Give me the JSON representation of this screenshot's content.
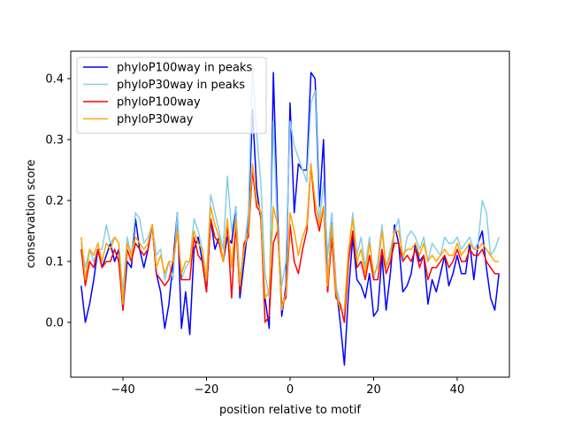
{
  "chart_data": {
    "type": "line",
    "title": "",
    "xlabel": "position relative to motif",
    "ylabel": "conservation score",
    "xlim": [
      -52.5,
      52.5
    ],
    "ylim": [
      -0.09,
      0.445
    ],
    "xticks": [
      -40,
      -20,
      0,
      20,
      40
    ],
    "xtick_labels": [
      "−40",
      "−20",
      "0",
      "20",
      "40"
    ],
    "yticks": [
      0.0,
      0.1,
      0.2,
      0.3,
      0.4
    ],
    "ytick_labels": [
      "0.0",
      "0.1",
      "0.2",
      "0.3",
      "0.4"
    ],
    "grid": false,
    "legend_position": "top-left",
    "x": [
      -50,
      -49,
      -48,
      -47,
      -46,
      -45,
      -44,
      -43,
      -42,
      -41,
      -40,
      -39,
      -38,
      -37,
      -36,
      -35,
      -34,
      -33,
      -32,
      -31,
      -30,
      -29,
      -28,
      -27,
      -26,
      -25,
      -24,
      -23,
      -22,
      -21,
      -20,
      -19,
      -18,
      -17,
      -16,
      -15,
      -14,
      -13,
      -12,
      -11,
      -10,
      -9,
      -8,
      -7,
      -6,
      -5,
      -4,
      -3,
      -2,
      -1,
      0,
      1,
      2,
      3,
      4,
      5,
      6,
      7,
      8,
      9,
      10,
      11,
      12,
      13,
      14,
      15,
      16,
      17,
      18,
      19,
      20,
      21,
      22,
      23,
      24,
      25,
      26,
      27,
      28,
      29,
      30,
      31,
      32,
      33,
      34,
      35,
      36,
      37,
      38,
      39,
      40,
      41,
      42,
      43,
      44,
      45,
      46,
      47,
      48,
      49,
      50
    ],
    "series": [
      {
        "name": "phyloP100way in peaks",
        "color": "#0000ff",
        "values": [
          0.06,
          0.0,
          0.03,
          0.07,
          0.12,
          0.09,
          0.11,
          0.13,
          0.1,
          0.12,
          0.02,
          0.1,
          0.09,
          0.17,
          0.12,
          0.09,
          0.12,
          0.16,
          0.08,
          0.05,
          -0.01,
          0.03,
          0.1,
          0.18,
          -0.01,
          0.05,
          -0.02,
          0.12,
          0.14,
          0.1,
          0.05,
          0.17,
          0.12,
          0.14,
          0.1,
          0.14,
          0.13,
          0.19,
          0.04,
          0.1,
          0.16,
          0.35,
          0.22,
          0.17,
          0.04,
          -0.01,
          0.41,
          0.18,
          0.01,
          0.06,
          0.36,
          0.18,
          0.26,
          0.25,
          0.25,
          0.41,
          0.4,
          0.19,
          0.3,
          0.05,
          0.17,
          0.06,
          0.0,
          -0.07,
          0.05,
          0.14,
          0.07,
          0.06,
          0.04,
          0.08,
          0.01,
          0.02,
          0.11,
          0.02,
          0.08,
          0.16,
          0.13,
          0.05,
          0.06,
          0.08,
          0.13,
          0.1,
          0.11,
          0.03,
          0.07,
          0.05,
          0.08,
          0.11,
          0.06,
          0.08,
          0.11,
          0.08,
          0.08,
          0.13,
          0.07,
          0.13,
          0.15,
          0.09,
          0.04,
          0.02,
          0.08
        ]
      },
      {
        "name": "phyloP30way in peaks",
        "color": "#87ceeb",
        "values": [
          0.13,
          0.09,
          0.12,
          0.1,
          0.12,
          0.12,
          0.16,
          0.13,
          0.14,
          0.13,
          0.05,
          0.14,
          0.11,
          0.18,
          0.17,
          0.13,
          0.14,
          0.16,
          0.11,
          0.12,
          0.07,
          0.1,
          0.07,
          0.18,
          0.07,
          0.09,
          0.1,
          0.17,
          0.15,
          0.12,
          0.07,
          0.21,
          0.18,
          0.15,
          0.12,
          0.24,
          0.15,
          0.19,
          0.07,
          0.12,
          0.18,
          0.42,
          0.31,
          0.23,
          0.08,
          0.04,
          0.33,
          0.15,
          0.06,
          0.1,
          0.33,
          0.29,
          0.27,
          0.25,
          0.23,
          0.36,
          0.38,
          0.16,
          0.23,
          0.11,
          0.18,
          0.06,
          0.03,
          0.0,
          0.11,
          0.18,
          0.11,
          0.14,
          0.09,
          0.14,
          0.07,
          0.1,
          0.16,
          0.09,
          0.12,
          0.15,
          0.17,
          0.1,
          0.14,
          0.15,
          0.14,
          0.12,
          0.14,
          0.1,
          0.13,
          0.12,
          0.11,
          0.14,
          0.13,
          0.13,
          0.14,
          0.12,
          0.13,
          0.14,
          0.12,
          0.13,
          0.2,
          0.18,
          0.11,
          0.12,
          0.14
        ]
      },
      {
        "name": "phyloP100way",
        "color": "#ff0000",
        "values": [
          0.12,
          0.06,
          0.1,
          0.09,
          0.12,
          0.09,
          0.1,
          0.1,
          0.12,
          0.1,
          0.02,
          0.12,
          0.1,
          0.13,
          0.12,
          0.11,
          0.12,
          0.16,
          0.08,
          0.07,
          0.06,
          0.07,
          0.1,
          0.15,
          0.07,
          0.07,
          0.07,
          0.14,
          0.11,
          0.1,
          0.05,
          0.17,
          0.14,
          0.13,
          0.1,
          0.16,
          0.04,
          0.16,
          0.05,
          0.13,
          0.14,
          0.25,
          0.19,
          0.18,
          0.0,
          0.01,
          0.13,
          0.15,
          0.03,
          0.04,
          0.16,
          0.1,
          0.08,
          0.12,
          0.15,
          0.26,
          0.18,
          0.15,
          0.19,
          0.05,
          0.14,
          0.04,
          0.03,
          0.0,
          0.1,
          0.15,
          0.09,
          0.1,
          0.07,
          0.11,
          0.07,
          0.07,
          0.12,
          0.08,
          0.1,
          0.13,
          0.13,
          0.1,
          0.11,
          0.1,
          0.12,
          0.09,
          0.11,
          0.07,
          0.09,
          0.09,
          0.1,
          0.11,
          0.09,
          0.1,
          0.12,
          0.1,
          0.1,
          0.12,
          0.11,
          0.11,
          0.12,
          0.1,
          0.09,
          0.08,
          0.08
        ]
      },
      {
        "name": "phyloP30way",
        "color": "#ffa500",
        "values": [
          0.14,
          0.07,
          0.12,
          0.11,
          0.13,
          0.1,
          0.13,
          0.12,
          0.14,
          0.13,
          0.03,
          0.13,
          0.11,
          0.14,
          0.13,
          0.12,
          0.13,
          0.16,
          0.09,
          0.11,
          0.08,
          0.1,
          0.1,
          0.15,
          0.08,
          0.1,
          0.1,
          0.15,
          0.13,
          0.12,
          0.07,
          0.19,
          0.16,
          0.14,
          0.1,
          0.17,
          0.09,
          0.17,
          0.06,
          0.12,
          0.15,
          0.26,
          0.2,
          0.18,
          0.04,
          0.05,
          0.19,
          0.16,
          0.02,
          0.05,
          0.18,
          0.15,
          0.11,
          0.14,
          0.16,
          0.26,
          0.2,
          0.16,
          0.19,
          0.06,
          0.16,
          0.05,
          0.02,
          0.02,
          0.12,
          0.17,
          0.1,
          0.12,
          0.08,
          0.13,
          0.08,
          0.09,
          0.15,
          0.09,
          0.11,
          0.15,
          0.15,
          0.11,
          0.12,
          0.12,
          0.13,
          0.11,
          0.13,
          0.1,
          0.11,
          0.1,
          0.11,
          0.12,
          0.11,
          0.11,
          0.13,
          0.11,
          0.12,
          0.13,
          0.12,
          0.12,
          0.13,
          0.12,
          0.11,
          0.1,
          0.1
        ]
      }
    ]
  }
}
